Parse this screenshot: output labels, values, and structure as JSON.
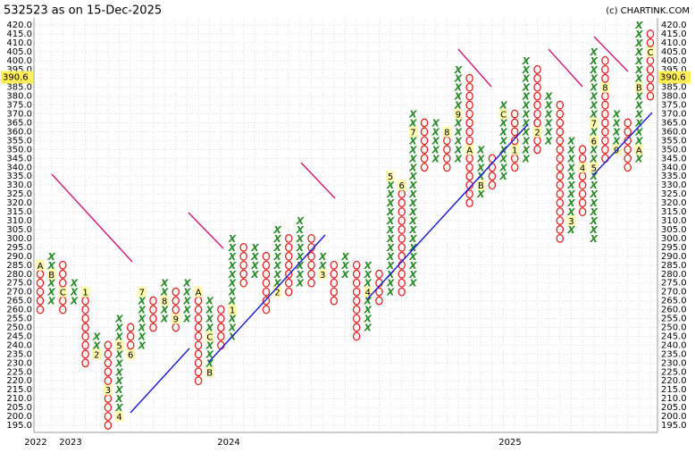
{
  "chart_data": {
    "type": "point-and-figure",
    "title": "532523 as on 15-Dec-2025",
    "credit": "(c) CHARTINK.COM",
    "current_price": 390.6,
    "ylim": [
      195,
      420
    ],
    "yticks": [
      {
        "value": 195,
        "label": "195.0"
      },
      {
        "value": 200,
        "label": "200.0"
      },
      {
        "value": 205,
        "label": "205.0"
      },
      {
        "value": 210,
        "label": "210.0"
      },
      {
        "value": 215,
        "label": "215.0"
      },
      {
        "value": 220,
        "label": "220.0"
      },
      {
        "value": 225,
        "label": "225.0"
      },
      {
        "value": 230,
        "label": "230.0"
      },
      {
        "value": 235,
        "label": "235.0"
      },
      {
        "value": 240,
        "label": "240.0"
      },
      {
        "value": 245,
        "label": "245.0"
      },
      {
        "value": 250,
        "label": "250.0"
      },
      {
        "value": 255,
        "label": "255.0"
      },
      {
        "value": 260,
        "label": "260.0"
      },
      {
        "value": 265,
        "label": "265.0"
      },
      {
        "value": 270,
        "label": "270.0"
      },
      {
        "value": 275,
        "label": "275.0"
      },
      {
        "value": 280,
        "label": "280.0"
      },
      {
        "value": 285,
        "label": "285.0"
      },
      {
        "value": 290,
        "label": "290.0"
      },
      {
        "value": 295,
        "label": "295.0"
      },
      {
        "value": 300,
        "label": "300.0"
      },
      {
        "value": 305,
        "label": "305.0"
      },
      {
        "value": 310,
        "label": "310.0"
      },
      {
        "value": 315,
        "label": "315.0"
      },
      {
        "value": 320,
        "label": "320.0"
      },
      {
        "value": 325,
        "label": "325.0"
      },
      {
        "value": 330,
        "label": "330.0"
      },
      {
        "value": 335,
        "label": "335.0"
      },
      {
        "value": 340,
        "label": "340.0"
      },
      {
        "value": 345,
        "label": "345.0"
      },
      {
        "value": 350,
        "label": "350.0"
      },
      {
        "value": 355,
        "label": "355.0"
      },
      {
        "value": 360,
        "label": "360.0"
      },
      {
        "value": 365,
        "label": "365.0"
      },
      {
        "value": 370,
        "label": "370.0"
      },
      {
        "value": 375,
        "label": "375.0"
      },
      {
        "value": 380,
        "label": "380.0"
      },
      {
        "value": 385,
        "label": "385.0"
      },
      {
        "value": 390,
        "label": "390.0"
      },
      {
        "value": 395,
        "label": "395.0"
      },
      {
        "value": 400,
        "label": "400.0"
      },
      {
        "value": 405,
        "label": "405.0"
      },
      {
        "value": 410,
        "label": "410.0"
      },
      {
        "value": 415,
        "label": "415.0"
      },
      {
        "value": 420,
        "label": "420.0"
      }
    ],
    "box_size": 5,
    "columns": [
      {
        "type": "O",
        "high": 285,
        "low": 260,
        "months": [
          {
            "price": 285,
            "label": "A"
          }
        ]
      },
      {
        "type": "X",
        "high": 290,
        "low": 265,
        "months": [
          {
            "price": 280,
            "label": "B"
          }
        ]
      },
      {
        "type": "O",
        "high": 285,
        "low": 260,
        "months": [
          {
            "price": 270,
            "label": "C"
          }
        ]
      },
      {
        "type": "X",
        "high": 275,
        "low": 265,
        "months": []
      },
      {
        "type": "O",
        "high": 270,
        "low": 230,
        "months": [
          {
            "price": 270,
            "label": "1"
          }
        ]
      },
      {
        "type": "X",
        "high": 245,
        "low": 235,
        "months": [
          {
            "price": 235,
            "label": "2"
          }
        ]
      },
      {
        "type": "O",
        "high": 240,
        "low": 195,
        "months": [
          {
            "price": 215,
            "label": "3"
          }
        ]
      },
      {
        "type": "X",
        "high": 255,
        "low": 200,
        "months": [
          {
            "price": 200,
            "label": "4"
          },
          {
            "price": 240,
            "label": "5"
          }
        ]
      },
      {
        "type": "O",
        "high": 250,
        "low": 235,
        "months": [
          {
            "price": 235,
            "label": "6"
          }
        ]
      },
      {
        "type": "X",
        "high": 270,
        "low": 240,
        "months": [
          {
            "price": 270,
            "label": "7"
          }
        ]
      },
      {
        "type": "O",
        "high": 265,
        "low": 250,
        "months": []
      },
      {
        "type": "X",
        "high": 275,
        "low": 255,
        "months": [
          {
            "price": 265,
            "label": "8"
          }
        ]
      },
      {
        "type": "O",
        "high": 270,
        "low": 250,
        "months": [
          {
            "price": 255,
            "label": "9"
          }
        ]
      },
      {
        "type": "X",
        "high": 275,
        "low": 255,
        "months": []
      },
      {
        "type": "O",
        "high": 270,
        "low": 220,
        "months": [
          {
            "price": 270,
            "label": "A"
          }
        ]
      },
      {
        "type": "X",
        "high": 265,
        "low": 225,
        "months": [
          {
            "price": 225,
            "label": "B"
          },
          {
            "price": 245,
            "label": "C"
          }
        ]
      },
      {
        "type": "O",
        "high": 260,
        "low": 240,
        "months": []
      },
      {
        "type": "X",
        "high": 300,
        "low": 245,
        "months": [
          {
            "price": 260,
            "label": "1"
          }
        ]
      },
      {
        "type": "O",
        "high": 295,
        "low": 275,
        "months": []
      },
      {
        "type": "X",
        "high": 295,
        "low": 280,
        "months": []
      },
      {
        "type": "O",
        "high": 290,
        "low": 260,
        "months": []
      },
      {
        "type": "X",
        "high": 305,
        "low": 270,
        "months": [
          {
            "price": 270,
            "label": "2"
          }
        ]
      },
      {
        "type": "O",
        "high": 300,
        "low": 270,
        "months": []
      },
      {
        "type": "X",
        "high": 310,
        "low": 275,
        "months": []
      },
      {
        "type": "O",
        "high": 300,
        "low": 275,
        "months": []
      },
      {
        "type": "X",
        "high": 290,
        "low": 280,
        "months": [
          {
            "price": 280,
            "label": "3"
          }
        ]
      },
      {
        "type": "O",
        "high": 285,
        "low": 265,
        "months": []
      },
      {
        "type": "X",
        "high": 290,
        "low": 280,
        "months": []
      },
      {
        "type": "O",
        "high": 285,
        "low": 245,
        "months": []
      },
      {
        "type": "X",
        "high": 285,
        "low": 250,
        "months": [
          {
            "price": 270,
            "label": "4"
          }
        ]
      },
      {
        "type": "O",
        "high": 280,
        "low": 265,
        "months": []
      },
      {
        "type": "X",
        "high": 335,
        "low": 270,
        "months": [
          {
            "price": 335,
            "label": "5"
          }
        ]
      },
      {
        "type": "O",
        "high": 330,
        "low": 270,
        "months": [
          {
            "price": 330,
            "label": "6"
          }
        ]
      },
      {
        "type": "X",
        "high": 370,
        "low": 275,
        "months": [
          {
            "price": 360,
            "label": "7"
          }
        ]
      },
      {
        "type": "O",
        "high": 365,
        "low": 340,
        "months": []
      },
      {
        "type": "X",
        "high": 365,
        "low": 345,
        "months": []
      },
      {
        "type": "O",
        "high": 360,
        "low": 340,
        "months": [
          {
            "price": 360,
            "label": "8"
          }
        ]
      },
      {
        "type": "X",
        "high": 395,
        "low": 345,
        "months": [
          {
            "price": 370,
            "label": "9"
          }
        ]
      },
      {
        "type": "O",
        "high": 390,
        "low": 320,
        "months": [
          {
            "price": 350,
            "label": "A"
          }
        ]
      },
      {
        "type": "X",
        "high": 350,
        "low": 325,
        "months": [
          {
            "price": 330,
            "label": "B"
          }
        ]
      },
      {
        "type": "O",
        "high": 345,
        "low": 330,
        "months": []
      },
      {
        "type": "X",
        "high": 375,
        "low": 335,
        "months": [
          {
            "price": 370,
            "label": "C"
          }
        ]
      },
      {
        "type": "O",
        "high": 370,
        "low": 340,
        "months": [
          {
            "price": 350,
            "label": "1"
          }
        ]
      },
      {
        "type": "X",
        "high": 400,
        "low": 345,
        "months": []
      },
      {
        "type": "O",
        "high": 395,
        "low": 350,
        "months": [
          {
            "price": 360,
            "label": "2"
          }
        ]
      },
      {
        "type": "X",
        "high": 380,
        "low": 355,
        "months": []
      },
      {
        "type": "O",
        "high": 375,
        "low": 300,
        "months": []
      },
      {
        "type": "X",
        "high": 355,
        "low": 305,
        "months": [
          {
            "price": 310,
            "label": "3"
          }
        ]
      },
      {
        "type": "O",
        "high": 350,
        "low": 315,
        "months": [
          {
            "price": 340,
            "label": "4"
          }
        ]
      },
      {
        "type": "X",
        "high": 405,
        "low": 300,
        "months": [
          {
            "price": 340,
            "label": "5"
          },
          {
            "price": 355,
            "label": "6"
          },
          {
            "price": 365,
            "label": "7"
          }
        ]
      },
      {
        "type": "O",
        "high": 400,
        "low": 345,
        "months": [
          {
            "price": 385,
            "label": "8"
          }
        ]
      },
      {
        "type": "X",
        "high": 370,
        "low": 350,
        "months": [
          {
            "price": 350,
            "label": "9"
          }
        ]
      },
      {
        "type": "O",
        "high": 365,
        "low": 340,
        "months": []
      },
      {
        "type": "X",
        "high": 420,
        "low": 345,
        "months": [
          {
            "price": 350,
            "label": "A"
          },
          {
            "price": 385,
            "label": "B"
          }
        ]
      },
      {
        "type": "O",
        "high": 415,
        "low": 380,
        "months": [
          {
            "price": 405,
            "label": "C"
          }
        ]
      }
    ],
    "years": [
      "2022",
      "2023",
      "2024",
      "2025"
    ]
  }
}
